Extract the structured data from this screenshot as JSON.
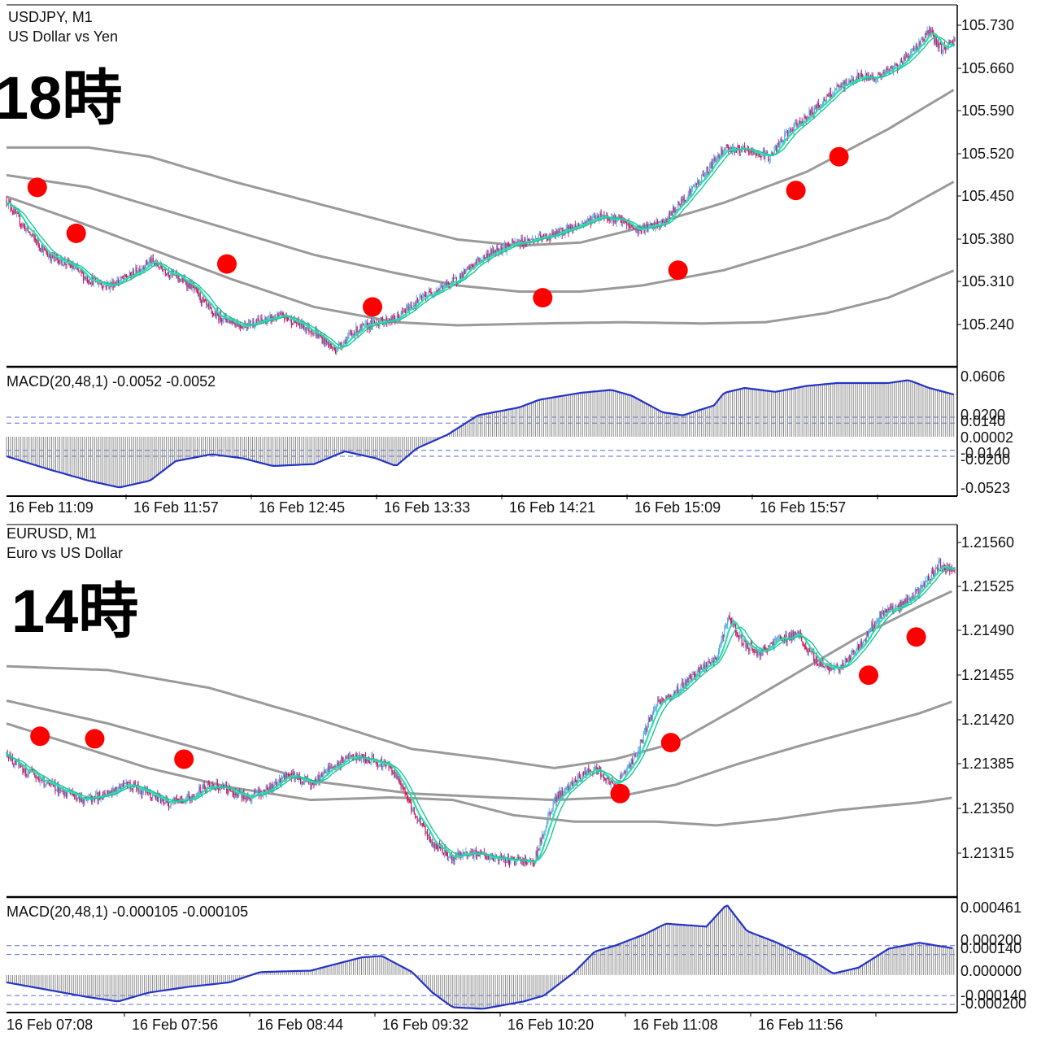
{
  "colors": {
    "background": "#ffffff",
    "frame": "#000000",
    "candle_up": "#5aa9e6",
    "candle_down": "#d4145a",
    "ma_fast": "#2be0a8",
    "ma_slow": "#19c79a",
    "envelope": "#9a9a9a",
    "macd_line": "#2432c8",
    "macd_hist": "#8a8a8a",
    "level_lines": "#5a6ad8",
    "marker": "#ff0000"
  },
  "panels": [
    {
      "symbol_line": "USDJPY, M1",
      "description": "US Dollar vs Yen",
      "overlay_label": "18時",
      "macd_label": "MACD(20,48,1) -0.0052 -0.0052",
      "price_ticks": [
        "105.730",
        "105.660",
        "105.590",
        "105.520",
        "105.450",
        "105.380",
        "105.310",
        "105.240"
      ],
      "macd_ticks": [
        "0.0606",
        "0.0200",
        "0.0140",
        "0.00002",
        "-0.0140",
        "-0.0200",
        "-0.0523"
      ],
      "time_labels": [
        "16 Feb 11:09",
        "16 Feb 11:57",
        "16 Feb 12:45",
        "16 Feb 13:33",
        "16 Feb 14:21",
        "16 Feb 15:09",
        "16 Feb 15:57"
      ]
    },
    {
      "symbol_line": "EURUSD, M1",
      "description": "Euro vs US Dollar",
      "overlay_label": "14時",
      "macd_label": "MACD(20,48,1) -0.000105 -0.000105",
      "price_ticks": [
        "1.21560",
        "1.21525",
        "1.21490",
        "1.21455",
        "1.21420",
        "1.21385",
        "1.21350",
        "1.21315"
      ],
      "macd_ticks": [
        "0.000461",
        "0.000200",
        "0.000140",
        "0.000000",
        "-0.000140",
        "-0.000200"
      ],
      "time_labels": [
        "16 Feb 07:08",
        "16 Feb 07:56",
        "16 Feb 08:44",
        "16 Feb 09:32",
        "16 Feb 10:20",
        "16 Feb 11:08",
        "16 Feb 11:56"
      ]
    }
  ],
  "chart_data": [
    {
      "type": "candlestick",
      "title": "USDJPY, M1",
      "subtitle": "US Dollar vs Yen",
      "ylim": [
        105.19,
        105.775
      ],
      "x_range_minutes": [
        -5,
        492
      ],
      "price_key": [
        [
          0,
          105.46
        ],
        [
          15,
          105.42
        ],
        [
          40,
          105.37
        ],
        [
          60,
          105.355
        ],
        [
          80,
          105.33
        ],
        [
          100,
          105.32
        ],
        [
          120,
          105.335
        ],
        [
          140,
          105.36
        ],
        [
          160,
          105.34
        ],
        [
          180,
          105.32
        ],
        [
          200,
          105.275
        ],
        [
          230,
          105.255
        ],
        [
          270,
          105.27
        ],
        [
          300,
          105.245
        ],
        [
          320,
          105.215
        ],
        [
          340,
          105.245
        ],
        [
          360,
          105.26
        ],
        [
          380,
          105.265
        ],
        [
          390,
          105.28
        ],
        [
          410,
          105.305
        ],
        [
          440,
          105.33
        ],
        [
          460,
          105.36
        ],
        [
          480,
          105.38
        ],
        [
          500,
          105.39
        ],
        [
          530,
          105.4
        ],
        [
          560,
          105.42
        ],
        [
          580,
          105.435
        ],
        [
          600,
          105.425
        ],
        [
          615,
          105.41
        ],
        [
          640,
          105.42
        ],
        [
          660,
          105.46
        ],
        [
          680,
          105.5
        ],
        [
          700,
          105.545
        ],
        [
          720,
          105.54
        ],
        [
          745,
          105.53
        ],
        [
          760,
          105.565
        ],
        [
          790,
          105.61
        ],
        [
          810,
          105.64
        ],
        [
          830,
          105.66
        ],
        [
          850,
          105.66
        ],
        [
          870,
          105.68
        ],
        [
          888,
          105.71
        ],
        [
          900,
          105.735
        ],
        [
          912,
          105.705
        ],
        [
          925,
          105.72
        ]
      ],
      "envelope_key": [
        [
          [
            0,
            105.545
          ],
          [
            80,
            105.545
          ],
          [
            140,
            105.53
          ],
          [
            220,
            105.49
          ],
          [
            300,
            105.455
          ],
          [
            380,
            105.42
          ],
          [
            440,
            105.395
          ],
          [
            500,
            105.385
          ],
          [
            560,
            105.39
          ],
          [
            620,
            105.415
          ],
          [
            700,
            105.455
          ],
          [
            780,
            105.505
          ],
          [
            860,
            105.575
          ],
          [
            925,
            105.64
          ]
        ],
        [
          [
            0,
            105.5
          ],
          [
            80,
            105.48
          ],
          [
            140,
            105.45
          ],
          [
            220,
            105.41
          ],
          [
            300,
            105.37
          ],
          [
            380,
            105.34
          ],
          [
            440,
            105.32
          ],
          [
            500,
            105.31
          ],
          [
            560,
            105.31
          ],
          [
            620,
            105.32
          ],
          [
            700,
            105.345
          ],
          [
            780,
            105.385
          ],
          [
            860,
            105.43
          ],
          [
            925,
            105.49
          ]
        ],
        [
          [
            0,
            105.465
          ],
          [
            60,
            105.43
          ],
          [
            140,
            105.38
          ],
          [
            220,
            105.33
          ],
          [
            300,
            105.285
          ],
          [
            380,
            105.26
          ],
          [
            440,
            105.255
          ],
          [
            520,
            105.258
          ],
          [
            600,
            105.26
          ],
          [
            680,
            105.258
          ],
          [
            740,
            105.26
          ],
          [
            800,
            105.275
          ],
          [
            860,
            105.3
          ],
          [
            925,
            105.345
          ]
        ]
      ],
      "markers": [
        [
          30,
          105.48
        ],
        [
          68,
          105.405
        ],
        [
          215,
          105.355
        ],
        [
          357,
          105.285
        ],
        [
          523,
          105.3
        ],
        [
          655,
          105.345
        ],
        [
          770,
          105.475
        ],
        [
          812,
          105.53
        ]
      ],
      "macd": {
        "ylim": [
          -0.06,
          0.07
        ],
        "levels": [
          0.02,
          0.014,
          -0.014,
          -0.02
        ],
        "key": [
          [
            0,
            -0.02
          ],
          [
            40,
            -0.033
          ],
          [
            80,
            -0.045
          ],
          [
            110,
            -0.052
          ],
          [
            140,
            -0.045
          ],
          [
            165,
            -0.025
          ],
          [
            200,
            -0.018
          ],
          [
            230,
            -0.022
          ],
          [
            260,
            -0.03
          ],
          [
            300,
            -0.028
          ],
          [
            330,
            -0.015
          ],
          [
            360,
            -0.022
          ],
          [
            380,
            -0.03
          ],
          [
            400,
            -0.012
          ],
          [
            430,
            0.002
          ],
          [
            460,
            0.022
          ],
          [
            500,
            0.03
          ],
          [
            520,
            0.038
          ],
          [
            560,
            0.045
          ],
          [
            590,
            0.048
          ],
          [
            610,
            0.042
          ],
          [
            640,
            0.025
          ],
          [
            660,
            0.022
          ],
          [
            690,
            0.032
          ],
          [
            700,
            0.045
          ],
          [
            720,
            0.05
          ],
          [
            750,
            0.046
          ],
          [
            780,
            0.052
          ],
          [
            810,
            0.055
          ],
          [
            860,
            0.055
          ],
          [
            880,
            0.058
          ],
          [
            900,
            0.05
          ],
          [
            925,
            0.043
          ]
        ]
      }
    },
    {
      "type": "candlestick",
      "title": "EURUSD, M1",
      "subtitle": "Euro vs US Dollar",
      "ylim": [
        1.21285,
        1.21575
      ],
      "x_range_minutes": [
        -5,
        492
      ],
      "price_key": [
        [
          0,
          1.21395
        ],
        [
          15,
          1.21385
        ],
        [
          35,
          1.21375
        ],
        [
          60,
          1.21365
        ],
        [
          80,
          1.2136
        ],
        [
          100,
          1.21365
        ],
        [
          120,
          1.21372
        ],
        [
          140,
          1.21365
        ],
        [
          160,
          1.21358
        ],
        [
          180,
          1.21362
        ],
        [
          200,
          1.21372
        ],
        [
          220,
          1.21368
        ],
        [
          240,
          1.21362
        ],
        [
          260,
          1.2137
        ],
        [
          280,
          1.2138
        ],
        [
          300,
          1.21372
        ],
        [
          320,
          1.21385
        ],
        [
          340,
          1.21395
        ],
        [
          360,
          1.21392
        ],
        [
          380,
          1.21385
        ],
        [
          400,
          1.21352
        ],
        [
          420,
          1.21325
        ],
        [
          440,
          1.21315
        ],
        [
          460,
          1.21318
        ],
        [
          480,
          1.21315
        ],
        [
          500,
          1.21312
        ],
        [
          520,
          1.21312
        ],
        [
          540,
          1.2136
        ],
        [
          560,
          1.21375
        ],
        [
          580,
          1.21385
        ],
        [
          600,
          1.2137
        ],
        [
          620,
          1.21395
        ],
        [
          640,
          1.21435
        ],
        [
          660,
          1.21445
        ],
        [
          680,
          1.2146
        ],
        [
          700,
          1.21472
        ],
        [
          712,
          1.21505
        ],
        [
          725,
          1.21485
        ],
        [
          740,
          1.21475
        ],
        [
          760,
          1.21485
        ],
        [
          780,
          1.2149
        ],
        [
          800,
          1.21468
        ],
        [
          820,
          1.21462
        ],
        [
          840,
          1.2148
        ],
        [
          860,
          1.21505
        ],
        [
          880,
          1.21512
        ],
        [
          900,
          1.21525
        ],
        [
          920,
          1.21545
        ],
        [
          935,
          1.21538
        ]
      ],
      "envelope_key": [
        [
          [
            0,
            1.21465
          ],
          [
            100,
            1.21462
          ],
          [
            200,
            1.21448
          ],
          [
            300,
            1.21425
          ],
          [
            400,
            1.214
          ],
          [
            480,
            1.21392
          ],
          [
            540,
            1.21385
          ],
          [
            600,
            1.21392
          ],
          [
            660,
            1.21405
          ],
          [
            720,
            1.21432
          ],
          [
            780,
            1.2146
          ],
          [
            840,
            1.21488
          ],
          [
            900,
            1.21512
          ],
          [
            935,
            1.21525
          ]
        ],
        [
          [
            0,
            1.21438
          ],
          [
            100,
            1.2142
          ],
          [
            200,
            1.21398
          ],
          [
            300,
            1.21375
          ],
          [
            400,
            1.21365
          ],
          [
            480,
            1.21362
          ],
          [
            540,
            1.2136
          ],
          [
            600,
            1.21362
          ],
          [
            660,
            1.21372
          ],
          [
            720,
            1.21388
          ],
          [
            780,
            1.21402
          ],
          [
            840,
            1.21415
          ],
          [
            900,
            1.21428
          ],
          [
            935,
            1.21438
          ]
        ],
        [
          [
            0,
            1.2142
          ],
          [
            60,
            1.21405
          ],
          [
            140,
            1.21385
          ],
          [
            220,
            1.2137
          ],
          [
            300,
            1.2136
          ],
          [
            380,
            1.21362
          ],
          [
            440,
            1.2136
          ],
          [
            500,
            1.21348
          ],
          [
            560,
            1.21343
          ],
          [
            640,
            1.21343
          ],
          [
            700,
            1.2134
          ],
          [
            760,
            1.21345
          ],
          [
            820,
            1.21352
          ],
          [
            900,
            1.21358
          ],
          [
            935,
            1.21362
          ]
        ]
      ],
      "markers": [
        [
          33,
          1.2141
        ],
        [
          87,
          1.21408
        ],
        [
          175,
          1.21392
        ],
        [
          605,
          1.21365
        ],
        [
          655,
          1.21405
        ],
        [
          850,
          1.21458
        ],
        [
          897,
          1.21488
        ]
      ],
      "macd": {
        "ylim": [
          -0.00025,
          0.00052
        ],
        "levels": [
          0.0002,
          0.00014,
          -0.00014,
          -0.0002
        ],
        "key": [
          [
            0,
            -5e-05
          ],
          [
            40,
            -0.0001
          ],
          [
            80,
            -0.00015
          ],
          [
            110,
            -0.00018
          ],
          [
            140,
            -0.00012
          ],
          [
            180,
            -8e-05
          ],
          [
            220,
            -5e-05
          ],
          [
            250,
            2e-05
          ],
          [
            300,
            3e-05
          ],
          [
            350,
            0.00012
          ],
          [
            370,
            0.00013
          ],
          [
            400,
            2e-05
          ],
          [
            420,
            -0.00012
          ],
          [
            440,
            -0.00022
          ],
          [
            470,
            -0.00023
          ],
          [
            510,
            -0.00018
          ],
          [
            530,
            -0.00014
          ],
          [
            560,
            2e-05
          ],
          [
            580,
            0.00016
          ],
          [
            600,
            0.0002
          ],
          [
            630,
            0.00028
          ],
          [
            650,
            0.00035
          ],
          [
            690,
            0.00033
          ],
          [
            710,
            0.00048
          ],
          [
            730,
            0.0003
          ],
          [
            760,
            0.00022
          ],
          [
            790,
            0.00012
          ],
          [
            815,
            1e-05
          ],
          [
            840,
            5e-05
          ],
          [
            870,
            0.00018
          ],
          [
            900,
            0.00022
          ],
          [
            935,
            0.00018
          ]
        ]
      }
    }
  ]
}
